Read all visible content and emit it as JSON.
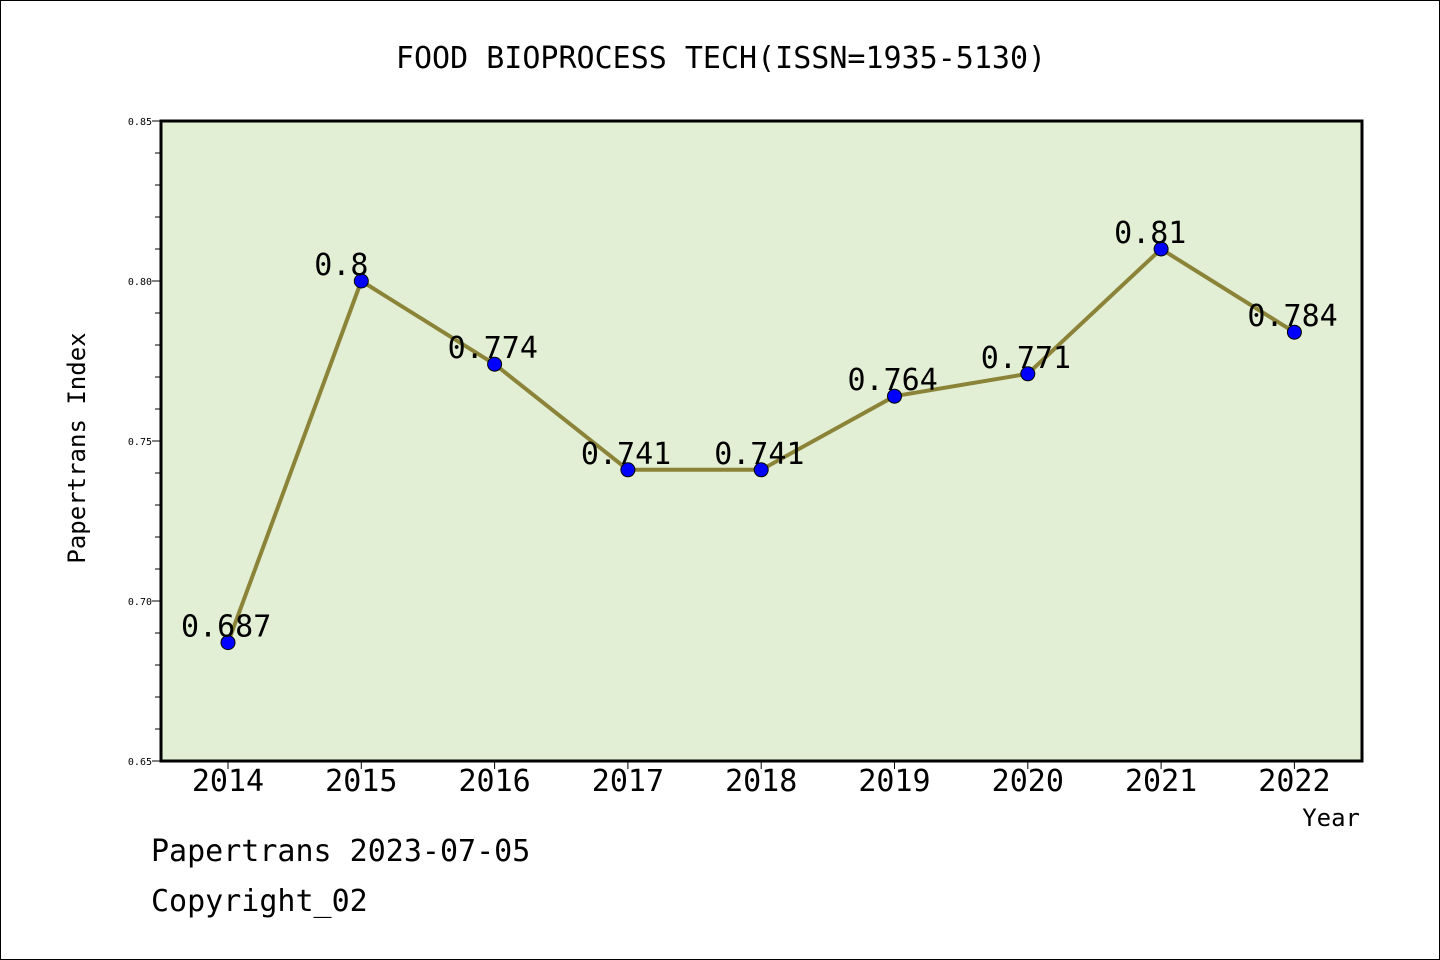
{
  "chart_data": {
    "type": "line",
    "title": "FOOD BIOPROCESS TECH(ISSN=1935-5130)",
    "xlabel": "Year",
    "ylabel": "Papertrans Index",
    "categories": [
      "2014",
      "2015",
      "2016",
      "2017",
      "2018",
      "2019",
      "2020",
      "2021",
      "2022"
    ],
    "values": [
      0.687,
      0.8,
      0.774,
      0.741,
      0.741,
      0.764,
      0.771,
      0.81,
      0.784
    ],
    "data_labels": [
      "0.687",
      "0.8",
      "0.774",
      "0.741",
      "0.741",
      "0.764",
      "0.771",
      "0.81",
      "0.784"
    ],
    "ylim": [
      0.65,
      0.85
    ],
    "yticks": [
      "0.65",
      "0.70",
      "0.75",
      "0.80",
      "0.85"
    ],
    "grid": false,
    "colors": {
      "plot_background": "#e2efd5",
      "line": "#8b8438",
      "marker": "#0000ff"
    }
  },
  "footer": {
    "source": "Papertrans 2023-07-05",
    "copyright": "Copyright_02"
  }
}
